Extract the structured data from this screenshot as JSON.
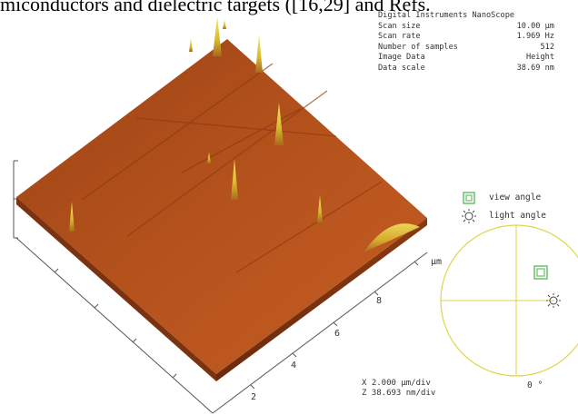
{
  "caption_fragment": "miconductors and dielectric targets ([16,29] and Refs.",
  "info": {
    "header": "Digital Instruments NanoScope",
    "rows": [
      {
        "label": "Scan size",
        "value": "10.00 µm"
      },
      {
        "label": "Scan rate",
        "value": "1.969 Hz"
      },
      {
        "label": "Number of samples",
        "value": "512"
      },
      {
        "label": "Image Data",
        "value": "Height"
      },
      {
        "label": "Data scale",
        "value": "38.69 nm"
      }
    ]
  },
  "legend": {
    "view_angle": "view angle",
    "light_angle": "light angle"
  },
  "axis": {
    "unit": "µm",
    "ticks": [
      "2",
      "4",
      "6",
      "8"
    ]
  },
  "scale": {
    "x": "X  2.000 µm/div",
    "z": "Z  38.693 nm/div"
  },
  "compass": {
    "zero_label": "0 °"
  },
  "colors": {
    "surface_top": "#b5521c",
    "surface_side": "#8a3a12",
    "peak": "#e6d640",
    "compass_circle": "#e0d54a",
    "view_marker": "#6cbf6c"
  }
}
